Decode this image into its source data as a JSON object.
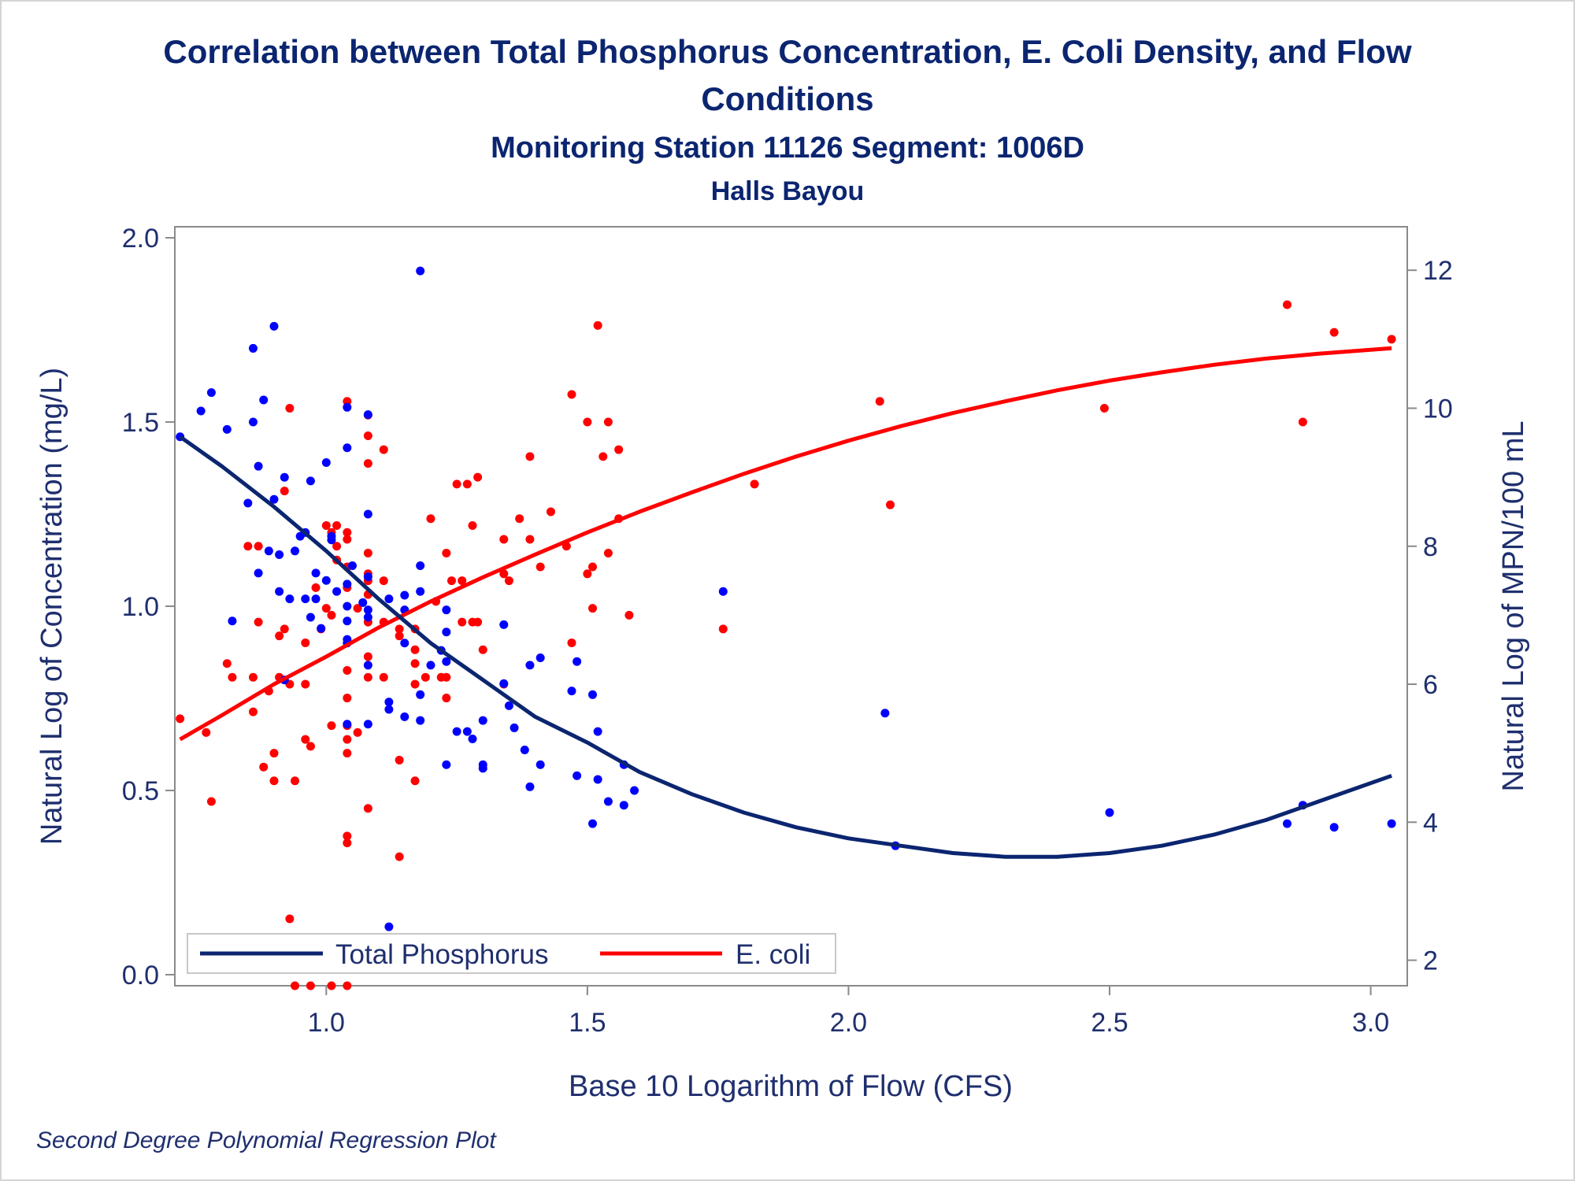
{
  "chart_data": {
    "type": "scatter",
    "title": "Correlation between Total Phosphorus Concentration, E. Coli Density, and Flow",
    "title_line2": "Conditions",
    "subtitle": "Monitoring Station 11126 Segment: 1006D",
    "subtitle2": "Halls Bayou",
    "xlabel": "Base 10 Logarithm of Flow (CFS)",
    "ylabel_left": "Natural Log of Concentration (mg/L)",
    "ylabel_right": "Natural Log of MPN/100 mL",
    "footnote": "Second Degree Polynomial Regression Plot",
    "xlim": [
      0.71,
      3.07
    ],
    "ylim_left": [
      -0.03,
      2.03
    ],
    "ylim_right": [
      1.63,
      12.63
    ],
    "x_ticks": [
      "1.0",
      "1.5",
      "2.0",
      "2.5",
      "3.0"
    ],
    "x_tick_values": [
      1.0,
      1.5,
      2.0,
      2.5,
      3.0
    ],
    "y_left_ticks": [
      "0.0",
      "0.5",
      "1.0",
      "1.5",
      "2.0"
    ],
    "y_left_tick_values": [
      0.0,
      0.5,
      1.0,
      1.5,
      2.0
    ],
    "y_right_ticks": [
      "2",
      "4",
      "6",
      "8",
      "10",
      "12"
    ],
    "y_right_tick_values": [
      2,
      4,
      6,
      8,
      10,
      12
    ],
    "grid": false,
    "legend_position": "bottom-left inside",
    "colors": {
      "tp_line": "#0b2570",
      "tp_points": "#0000ff",
      "ecoli_line": "#ff0000",
      "ecoli_points": "#ff0000",
      "text": "#1f2f6e",
      "title": "#0b2570",
      "axis": "#8a8a8a"
    },
    "series": [
      {
        "name": "Total Phosphorus",
        "axis": "left",
        "fit": "quadratic",
        "fit_x_range": [
          0.72,
          3.04
        ],
        "fit_points": [
          [
            0.72,
            1.46
          ],
          [
            0.8,
            1.38
          ],
          [
            0.9,
            1.27
          ],
          [
            1.0,
            1.15
          ],
          [
            1.1,
            1.02
          ],
          [
            1.2,
            0.9
          ],
          [
            1.3,
            0.8
          ],
          [
            1.4,
            0.7
          ],
          [
            1.5,
            0.63
          ],
          [
            1.6,
            0.55
          ],
          [
            1.7,
            0.49
          ],
          [
            1.8,
            0.44
          ],
          [
            1.9,
            0.4
          ],
          [
            2.0,
            0.37
          ],
          [
            2.1,
            0.35
          ],
          [
            2.2,
            0.33
          ],
          [
            2.3,
            0.32
          ],
          [
            2.4,
            0.32
          ],
          [
            2.5,
            0.33
          ],
          [
            2.6,
            0.35
          ],
          [
            2.7,
            0.38
          ],
          [
            2.8,
            0.42
          ],
          [
            2.9,
            0.47
          ],
          [
            3.04,
            0.54
          ]
        ],
        "points": [
          [
            0.72,
            1.46
          ],
          [
            0.76,
            1.53
          ],
          [
            0.78,
            1.58
          ],
          [
            0.81,
            1.48
          ],
          [
            0.82,
            0.96
          ],
          [
            0.85,
            1.28
          ],
          [
            0.86,
            1.5
          ],
          [
            0.86,
            1.7
          ],
          [
            0.87,
            1.38
          ],
          [
            0.87,
            1.09
          ],
          [
            0.88,
            1.56
          ],
          [
            0.89,
            1.15
          ],
          [
            0.9,
            1.29
          ],
          [
            0.9,
            1.76
          ],
          [
            0.91,
            1.14
          ],
          [
            0.91,
            1.04
          ],
          [
            0.92,
            0.8
          ],
          [
            0.92,
            1.35
          ],
          [
            0.93,
            1.02
          ],
          [
            0.94,
            1.15
          ],
          [
            0.95,
            1.19
          ],
          [
            0.96,
            1.2
          ],
          [
            0.96,
            1.02
          ],
          [
            0.97,
            1.34
          ],
          [
            0.97,
            0.97
          ],
          [
            0.98,
            1.09
          ],
          [
            0.98,
            1.02
          ],
          [
            0.99,
            0.94
          ],
          [
            1.0,
            1.39
          ],
          [
            1.0,
            1.07
          ],
          [
            1.01,
            1.19
          ],
          [
            1.01,
            1.18
          ],
          [
            1.02,
            1.04
          ],
          [
            1.04,
            1.54
          ],
          [
            1.04,
            1.43
          ],
          [
            1.04,
            1.06
          ],
          [
            1.04,
            1.0
          ],
          [
            1.04,
            0.96
          ],
          [
            1.04,
            0.91
          ],
          [
            1.04,
            0.9
          ],
          [
            1.04,
            0.68
          ],
          [
            1.05,
            1.11
          ],
          [
            1.07,
            1.01
          ],
          [
            1.08,
            0.99
          ],
          [
            1.08,
            0.97
          ],
          [
            1.08,
            1.08
          ],
          [
            1.08,
            0.84
          ],
          [
            1.08,
            1.25
          ],
          [
            1.08,
            1.52
          ],
          [
            1.08,
            0.68
          ],
          [
            1.12,
            1.02
          ],
          [
            1.12,
            0.74
          ],
          [
            1.12,
            0.72
          ],
          [
            1.12,
            0.13
          ],
          [
            1.15,
            1.03
          ],
          [
            1.15,
            0.99
          ],
          [
            1.15,
            0.9
          ],
          [
            1.15,
            0.7
          ],
          [
            1.18,
            1.91
          ],
          [
            1.18,
            1.11
          ],
          [
            1.18,
            1.04
          ],
          [
            1.18,
            0.76
          ],
          [
            1.18,
            0.69
          ],
          [
            1.2,
            0.84
          ],
          [
            1.22,
            0.88
          ],
          [
            1.23,
            0.85
          ],
          [
            1.23,
            0.99
          ],
          [
            1.23,
            0.93
          ],
          [
            1.23,
            0.57
          ],
          [
            1.25,
            0.66
          ],
          [
            1.27,
            0.66
          ],
          [
            1.28,
            0.64
          ],
          [
            1.3,
            0.69
          ],
          [
            1.3,
            0.57
          ],
          [
            1.3,
            0.56
          ],
          [
            1.34,
            0.95
          ],
          [
            1.34,
            0.79
          ],
          [
            1.35,
            0.73
          ],
          [
            1.36,
            0.67
          ],
          [
            1.38,
            0.61
          ],
          [
            1.39,
            0.84
          ],
          [
            1.39,
            0.51
          ],
          [
            1.41,
            0.86
          ],
          [
            1.41,
            0.57
          ],
          [
            1.47,
            0.77
          ],
          [
            1.48,
            0.85
          ],
          [
            1.48,
            0.54
          ],
          [
            1.51,
            0.76
          ],
          [
            1.51,
            0.41
          ],
          [
            1.52,
            0.66
          ],
          [
            1.52,
            0.53
          ],
          [
            1.54,
            0.47
          ],
          [
            1.57,
            0.57
          ],
          [
            1.57,
            0.46
          ],
          [
            1.59,
            0.5
          ],
          [
            1.76,
            1.04
          ],
          [
            2.07,
            0.71
          ],
          [
            2.09,
            0.35
          ],
          [
            2.5,
            0.44
          ],
          [
            2.84,
            0.41
          ],
          [
            2.87,
            0.46
          ],
          [
            2.93,
            0.4
          ],
          [
            3.04,
            0.41
          ]
        ]
      },
      {
        "name": "E. coli",
        "axis": "right",
        "fit": "quadratic",
        "fit_x_range": [
          0.72,
          3.04
        ],
        "fit_points": [
          [
            0.72,
            5.2
          ],
          [
            0.8,
            5.55
          ],
          [
            0.9,
            6.0
          ],
          [
            1.0,
            6.4
          ],
          [
            1.1,
            6.82
          ],
          [
            1.2,
            7.2
          ],
          [
            1.3,
            7.55
          ],
          [
            1.4,
            7.88
          ],
          [
            1.5,
            8.2
          ],
          [
            1.6,
            8.5
          ],
          [
            1.7,
            8.78
          ],
          [
            1.8,
            9.05
          ],
          [
            1.9,
            9.3
          ],
          [
            2.0,
            9.53
          ],
          [
            2.1,
            9.74
          ],
          [
            2.2,
            9.93
          ],
          [
            2.3,
            10.1
          ],
          [
            2.4,
            10.26
          ],
          [
            2.5,
            10.4
          ],
          [
            2.6,
            10.52
          ],
          [
            2.7,
            10.63
          ],
          [
            2.8,
            10.72
          ],
          [
            2.9,
            10.79
          ],
          [
            3.04,
            10.87
          ]
        ],
        "points": [
          [
            0.72,
            5.5
          ],
          [
            0.77,
            5.3
          ],
          [
            0.78,
            4.3
          ],
          [
            0.81,
            6.3
          ],
          [
            0.82,
            6.1
          ],
          [
            0.85,
            8.0
          ],
          [
            0.86,
            6.1
          ],
          [
            0.86,
            5.6
          ],
          [
            0.87,
            8.0
          ],
          [
            0.87,
            6.9
          ],
          [
            0.88,
            4.8
          ],
          [
            0.89,
            5.9
          ],
          [
            0.9,
            5.0
          ],
          [
            0.9,
            4.6
          ],
          [
            0.91,
            6.7
          ],
          [
            0.91,
            6.1
          ],
          [
            0.92,
            8.8
          ],
          [
            0.92,
            6.8
          ],
          [
            0.93,
            10.0
          ],
          [
            0.93,
            6.0
          ],
          [
            0.93,
            2.6
          ],
          [
            0.94,
            4.6
          ],
          [
            0.94,
            1.63
          ],
          [
            0.96,
            6.6
          ],
          [
            0.96,
            6.0
          ],
          [
            0.96,
            5.2
          ],
          [
            0.97,
            5.1
          ],
          [
            0.97,
            1.63
          ],
          [
            0.98,
            7.4
          ],
          [
            0.99,
            6.8
          ],
          [
            1.0,
            8.3
          ],
          [
            1.0,
            7.1
          ],
          [
            1.01,
            8.2
          ],
          [
            1.01,
            7.0
          ],
          [
            1.01,
            5.4
          ],
          [
            1.01,
            1.63
          ],
          [
            1.02,
            8.0
          ],
          [
            1.02,
            8.3
          ],
          [
            1.02,
            7.8
          ],
          [
            1.04,
            10.1
          ],
          [
            1.04,
            8.2
          ],
          [
            1.04,
            8.1
          ],
          [
            1.04,
            7.7
          ],
          [
            1.04,
            7.4
          ],
          [
            1.04,
            6.2
          ],
          [
            1.04,
            5.8
          ],
          [
            1.04,
            5.4
          ],
          [
            1.04,
            5.2
          ],
          [
            1.04,
            5.0
          ],
          [
            1.04,
            3.8
          ],
          [
            1.04,
            3.7
          ],
          [
            1.04,
            1.63
          ],
          [
            1.06,
            7.1
          ],
          [
            1.06,
            5.3
          ],
          [
            1.08,
            9.9
          ],
          [
            1.08,
            9.6
          ],
          [
            1.08,
            9.2
          ],
          [
            1.08,
            7.9
          ],
          [
            1.08,
            7.6
          ],
          [
            1.08,
            7.5
          ],
          [
            1.08,
            7.3
          ],
          [
            1.08,
            6.9
          ],
          [
            1.08,
            6.4
          ],
          [
            1.08,
            6.1
          ],
          [
            1.08,
            4.2
          ],
          [
            1.11,
            9.4
          ],
          [
            1.11,
            7.5
          ],
          [
            1.11,
            6.9
          ],
          [
            1.11,
            6.1
          ],
          [
            1.14,
            6.8
          ],
          [
            1.14,
            6.7
          ],
          [
            1.14,
            4.9
          ],
          [
            1.14,
            3.5
          ],
          [
            1.17,
            6.8
          ],
          [
            1.17,
            6.5
          ],
          [
            1.17,
            6.3
          ],
          [
            1.17,
            6.0
          ],
          [
            1.17,
            4.6
          ],
          [
            1.19,
            6.1
          ],
          [
            1.2,
            8.4
          ],
          [
            1.21,
            7.2
          ],
          [
            1.22,
            6.1
          ],
          [
            1.23,
            7.9
          ],
          [
            1.23,
            6.1
          ],
          [
            1.23,
            5.8
          ],
          [
            1.24,
            7.5
          ],
          [
            1.25,
            8.9
          ],
          [
            1.26,
            7.5
          ],
          [
            1.26,
            6.9
          ],
          [
            1.27,
            8.9
          ],
          [
            1.28,
            8.3
          ],
          [
            1.28,
            6.9
          ],
          [
            1.29,
            9.0
          ],
          [
            1.29,
            6.9
          ],
          [
            1.3,
            6.5
          ],
          [
            1.34,
            8.1
          ],
          [
            1.34,
            7.6
          ],
          [
            1.34,
            6.0
          ],
          [
            1.35,
            7.5
          ],
          [
            1.37,
            8.4
          ],
          [
            1.39,
            9.3
          ],
          [
            1.39,
            8.1
          ],
          [
            1.41,
            7.7
          ],
          [
            1.43,
            8.5
          ],
          [
            1.46,
            8.0
          ],
          [
            1.47,
            6.6
          ],
          [
            1.47,
            10.2
          ],
          [
            1.5,
            7.6
          ],
          [
            1.5,
            9.8
          ],
          [
            1.51,
            7.7
          ],
          [
            1.51,
            7.1
          ],
          [
            1.52,
            11.2
          ],
          [
            1.53,
            9.3
          ],
          [
            1.54,
            9.8
          ],
          [
            1.54,
            7.9
          ],
          [
            1.56,
            9.4
          ],
          [
            1.56,
            8.4
          ],
          [
            1.58,
            7.0
          ],
          [
            1.76,
            6.8
          ],
          [
            1.82,
            8.9
          ],
          [
            2.06,
            10.1
          ],
          [
            2.08,
            8.6
          ],
          [
            2.49,
            10.0
          ],
          [
            2.84,
            11.5
          ],
          [
            2.87,
            9.8
          ],
          [
            2.93,
            11.1
          ],
          [
            3.04,
            11.0
          ]
        ]
      }
    ]
  }
}
